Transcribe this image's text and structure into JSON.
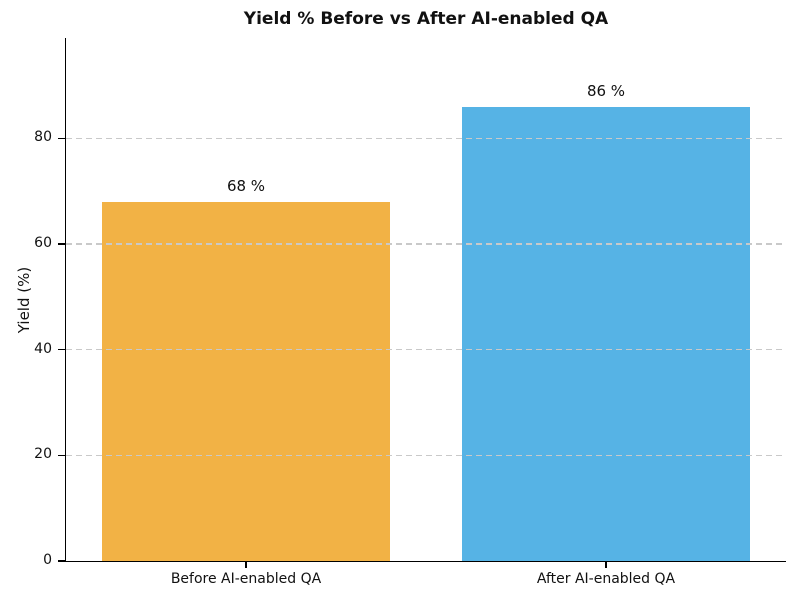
{
  "chart_data": {
    "type": "bar",
    "title": "Yield % Before vs After AI-enabled QA",
    "xlabel": "",
    "ylabel": "Yield (%)",
    "categories": [
      "Before AI-enabled QA",
      "After AI-enabled QA"
    ],
    "values": [
      68,
      86
    ],
    "value_labels": [
      "68 %",
      "86 %"
    ],
    "bar_colors": [
      "#F2B245",
      "#56B3E5"
    ],
    "yticks": [
      0,
      20,
      40,
      60,
      80
    ],
    "ylim": [
      0,
      99
    ],
    "bar_width_fraction": 0.4,
    "grid": "horizontal dashed, drawn over bars",
    "gridline_color": "#c9c9c9",
    "legend": "none",
    "title_color": "#111111"
  }
}
